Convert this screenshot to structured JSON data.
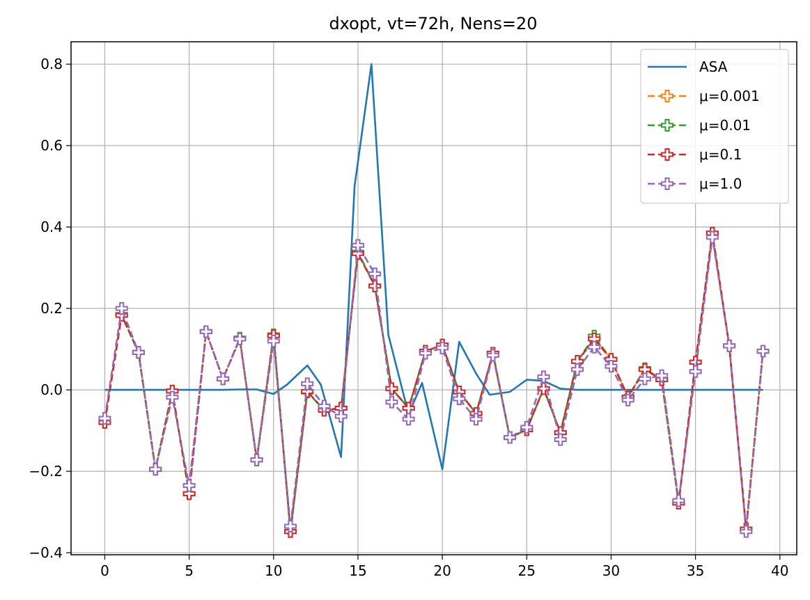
{
  "chart_data": {
    "type": "line",
    "title": "dxopt, vt=72h, Nens=20",
    "xlabel": "",
    "ylabel": "",
    "xlim": [
      -2,
      41
    ],
    "ylim": [
      -0.405,
      0.855
    ],
    "xticks": [
      0,
      5,
      10,
      15,
      20,
      25,
      30,
      35,
      40
    ],
    "xtick_labels": [
      "0",
      "5",
      "10",
      "15",
      "20",
      "25",
      "30",
      "35",
      "40"
    ],
    "yticks": [
      -0.4,
      -0.2,
      0.0,
      0.2,
      0.4,
      0.6,
      0.8
    ],
    "ytick_labels": [
      "−0.4",
      "−0.2",
      "0.0",
      "0.2",
      "0.4",
      "0.6",
      "0.8"
    ],
    "grid": true,
    "legend_position": "top-right",
    "x": [
      0,
      1,
      2,
      3,
      4,
      5,
      6,
      7,
      8,
      9,
      10,
      11,
      12,
      13,
      14,
      15,
      16,
      17,
      18,
      19,
      20,
      21,
      22,
      23,
      24,
      25,
      26,
      27,
      28,
      29,
      30,
      31,
      32,
      33,
      34,
      35,
      36,
      37,
      38,
      39
    ],
    "series": [
      {
        "name": "ASA",
        "color": "#1f77b4",
        "style": "solid",
        "marker": "none",
        "x": [
          0,
          1,
          2,
          3,
          4,
          5,
          6,
          7,
          8,
          9,
          10,
          10.8,
          12,
          12.8,
          14,
          14.8,
          15.8,
          16.8,
          18,
          18.8,
          20,
          21,
          22,
          22.8,
          24,
          25,
          26,
          27,
          28,
          29,
          30,
          31,
          32,
          33,
          34,
          35,
          36,
          37,
          38,
          39
        ],
        "values": [
          0,
          0,
          0,
          0,
          0,
          0,
          0,
          0,
          0.001,
          0.001,
          -0.01,
          0.013,
          0.06,
          0.013,
          -0.165,
          0.5,
          0.8,
          0.135,
          -0.06,
          0.017,
          -0.195,
          0.118,
          0.04,
          -0.012,
          -0.005,
          0.025,
          0.022,
          0.003,
          0,
          0,
          0,
          0,
          0,
          0,
          0,
          0,
          0,
          0,
          0,
          0
        ]
      },
      {
        "name": "μ=0.001",
        "color": "#ff7f0e",
        "style": "dashed",
        "marker": "plus",
        "values": [
          -0.08,
          0.185,
          0.092,
          -0.195,
          -0.003,
          -0.255,
          0.143,
          0.027,
          0.127,
          -0.172,
          0.135,
          -0.348,
          -0.005,
          -0.05,
          -0.045,
          0.338,
          0.255,
          0.003,
          -0.045,
          0.095,
          0.11,
          -0.005,
          -0.058,
          0.09,
          -0.117,
          -0.098,
          0.003,
          -0.105,
          0.07,
          0.128,
          0.075,
          -0.018,
          0.052,
          0.025,
          -0.278,
          0.068,
          0.385,
          0.108,
          -0.342,
          0.095
        ]
      },
      {
        "name": "μ=0.01",
        "color": "#2ca02c",
        "style": "dashed",
        "marker": "plus",
        "values": [
          -0.08,
          0.185,
          0.092,
          -0.195,
          -0.003,
          -0.255,
          0.143,
          0.027,
          0.127,
          -0.172,
          0.135,
          -0.348,
          -0.005,
          -0.05,
          -0.045,
          0.338,
          0.255,
          0.003,
          -0.045,
          0.095,
          0.11,
          -0.005,
          -0.058,
          0.09,
          -0.117,
          -0.098,
          0.003,
          -0.105,
          0.07,
          0.132,
          0.075,
          -0.018,
          0.052,
          0.025,
          -0.278,
          0.068,
          0.385,
          0.108,
          -0.342,
          0.095
        ]
      },
      {
        "name": "μ=0.1",
        "color": "#d62728",
        "style": "dashed",
        "marker": "plus",
        "values": [
          -0.08,
          0.183,
          0.092,
          -0.195,
          -0.003,
          -0.255,
          0.143,
          0.027,
          0.125,
          -0.172,
          0.133,
          -0.348,
          -0.004,
          -0.05,
          -0.045,
          0.335,
          0.255,
          0.003,
          -0.045,
          0.095,
          0.11,
          -0.005,
          -0.058,
          0.09,
          -0.117,
          -0.098,
          0.003,
          -0.105,
          0.07,
          0.125,
          0.075,
          -0.018,
          0.05,
          0.025,
          -0.278,
          0.068,
          0.385,
          0.108,
          -0.342,
          0.095
        ]
      },
      {
        "name": "μ=1.0",
        "color": "#9467bd",
        "style": "dashed",
        "marker": "plus",
        "values": [
          -0.07,
          0.2,
          0.092,
          -0.195,
          -0.018,
          -0.235,
          0.143,
          0.027,
          0.125,
          -0.172,
          0.12,
          -0.335,
          0.015,
          -0.04,
          -0.065,
          0.355,
          0.285,
          -0.03,
          -0.072,
          0.09,
          0.103,
          -0.022,
          -0.072,
          0.085,
          -0.117,
          -0.092,
          0.032,
          -0.122,
          0.05,
          0.105,
          0.058,
          -0.025,
          0.027,
          0.035,
          -0.272,
          0.045,
          0.375,
          0.108,
          -0.348,
          0.095
        ]
      }
    ]
  }
}
